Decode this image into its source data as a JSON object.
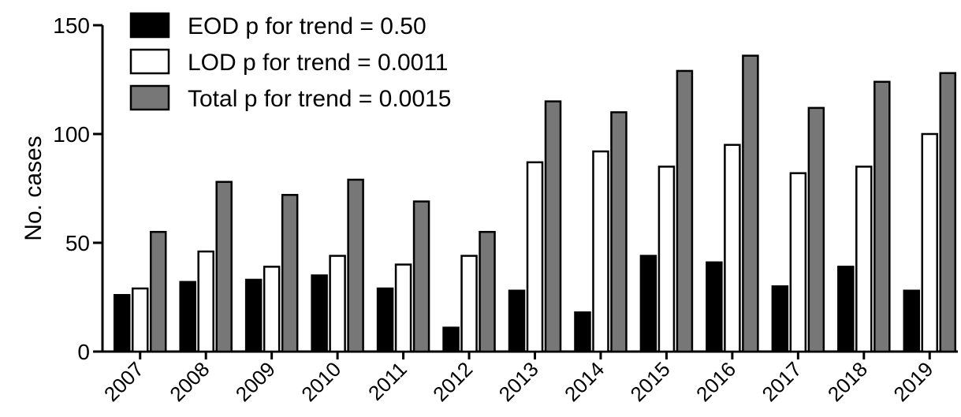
{
  "chart_data": {
    "type": "bar",
    "y_label": "No. cases",
    "categories": [
      "2007",
      "2008",
      "2009",
      "2010",
      "2011",
      "2012",
      "2013",
      "2014",
      "2015",
      "2016",
      "2017",
      "2018",
      "2019"
    ],
    "series": [
      {
        "name": "EOD p for trend = 0.50",
        "color": "#000000",
        "values": [
          26,
          32,
          33,
          35,
          29,
          11,
          28,
          18,
          44,
          41,
          30,
          39,
          28
        ]
      },
      {
        "name": "LOD p for trend = 0.0011",
        "color": "#ffffff",
        "values": [
          29,
          46,
          39,
          44,
          40,
          44,
          87,
          92,
          85,
          95,
          82,
          85,
          100
        ]
      },
      {
        "name": "Total p for trend = 0.0015",
        "color": "#777777",
        "values": [
          55,
          78,
          72,
          79,
          69,
          55,
          115,
          110,
          129,
          136,
          112,
          124,
          128
        ]
      }
    ],
    "ylim": [
      0,
      150
    ],
    "yticks": [
      0,
      50,
      100,
      150
    ]
  }
}
